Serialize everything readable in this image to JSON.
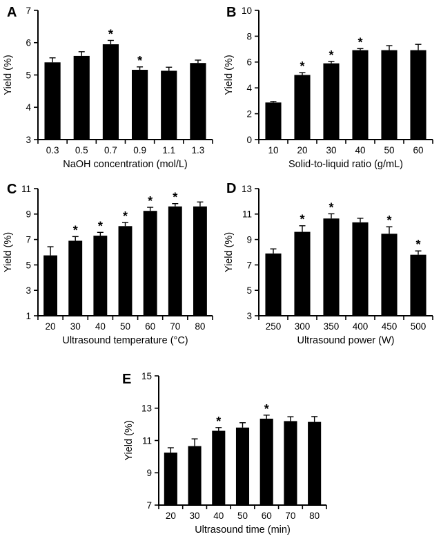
{
  "figure": {
    "background": "#ffffff",
    "bar_color": "#000000",
    "axis_color": "#000000",
    "error_bar_style": "upper-cap",
    "significance_marker": "*"
  },
  "chart_data": [
    {
      "type": "bar",
      "label": "A",
      "ylabel": "Yield (%)",
      "xlabel": "NaOH concentration (mol/L)",
      "categories": [
        "0.3",
        "0.5",
        "0.7",
        "0.9",
        "1.1",
        "1.3"
      ],
      "values": [
        5.39,
        5.59,
        5.95,
        5.16,
        5.13,
        5.37
      ],
      "errors": [
        0.14,
        0.13,
        0.12,
        0.09,
        0.11,
        0.09
      ],
      "significant": [
        false,
        false,
        true,
        true,
        false,
        false
      ],
      "ylim": [
        3,
        7
      ],
      "yticks": [
        3,
        4,
        5,
        6,
        7
      ],
      "grid": false,
      "legend": false
    },
    {
      "type": "bar",
      "label": "B",
      "ylabel": "Yield (%)",
      "xlabel": "Solid-to-liquid ratio (g/mL)",
      "categories": [
        "10",
        "20",
        "30",
        "40",
        "50",
        "60"
      ],
      "values": [
        2.87,
        5.0,
        5.9,
        6.92,
        6.92,
        6.92
      ],
      "errors": [
        0.08,
        0.18,
        0.15,
        0.12,
        0.35,
        0.45
      ],
      "significant": [
        false,
        true,
        true,
        true,
        false,
        false
      ],
      "ylim": [
        0,
        10
      ],
      "yticks": [
        0,
        2,
        4,
        6,
        8,
        10
      ],
      "grid": false,
      "legend": false
    },
    {
      "type": "bar",
      "label": "C",
      "ylabel": "Yield (%)",
      "xlabel": "Ultrasound temperature (°C)",
      "categories": [
        "20",
        "30",
        "40",
        "50",
        "60",
        "70",
        "80"
      ],
      "values": [
        5.75,
        6.9,
        7.3,
        8.05,
        9.25,
        9.6,
        9.6
      ],
      "errors": [
        0.68,
        0.33,
        0.26,
        0.29,
        0.28,
        0.22,
        0.35
      ],
      "significant": [
        false,
        true,
        true,
        true,
        true,
        true,
        false
      ],
      "ylim": [
        1,
        11
      ],
      "yticks": [
        1,
        3,
        5,
        7,
        9,
        11
      ],
      "grid": false,
      "legend": false
    },
    {
      "type": "bar",
      "label": "D",
      "ylabel": "Yield (%)",
      "xlabel": "Ultrasound power (W)",
      "categories": [
        "250",
        "300",
        "350",
        "400",
        "450",
        "500"
      ],
      "values": [
        7.9,
        9.6,
        10.65,
        10.35,
        9.45,
        7.8
      ],
      "errors": [
        0.36,
        0.48,
        0.37,
        0.32,
        0.55,
        0.3
      ],
      "significant": [
        false,
        true,
        true,
        false,
        true,
        true
      ],
      "ylim": [
        3,
        13
      ],
      "yticks": [
        3,
        5,
        7,
        9,
        11,
        13
      ],
      "grid": false,
      "legend": false
    },
    {
      "type": "bar",
      "label": "E",
      "ylabel": "Yield (%)",
      "xlabel": "Ultrasound time (min)",
      "categories": [
        "20",
        "30",
        "40",
        "50",
        "60",
        "70",
        "80"
      ],
      "values": [
        10.25,
        10.65,
        11.6,
        11.8,
        12.35,
        12.2,
        12.15
      ],
      "errors": [
        0.3,
        0.45,
        0.2,
        0.3,
        0.22,
        0.27,
        0.33
      ],
      "significant": [
        false,
        false,
        true,
        false,
        true,
        false,
        false
      ],
      "ylim": [
        7,
        15
      ],
      "yticks": [
        7,
        9,
        11,
        13,
        15
      ],
      "grid": false,
      "legend": false
    }
  ]
}
